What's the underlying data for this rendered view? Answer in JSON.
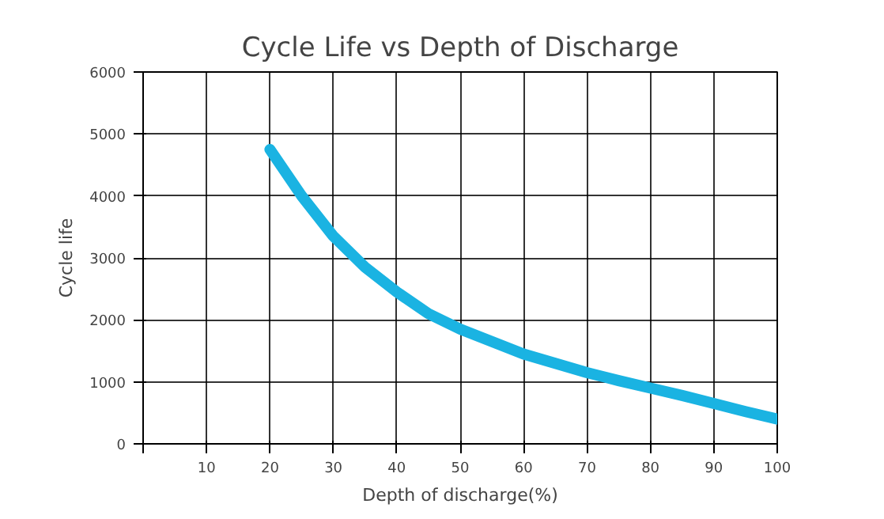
{
  "chart_data": {
    "type": "line",
    "title": "Cycle Life vs Depth of Discharge",
    "xlabel": "Depth of discharge(%)",
    "ylabel": "Cycle life",
    "x": [
      20,
      25,
      30,
      35,
      40,
      45,
      50,
      55,
      60,
      65,
      70,
      75,
      80,
      85,
      90,
      95,
      100
    ],
    "series": [
      {
        "color": "#1ab3e2",
        "values": [
          4750,
          4000,
          3350,
          2850,
          2450,
          2100,
          1850,
          1650,
          1450,
          1300,
          1150,
          1020,
          900,
          780,
          650,
          520,
          400
        ]
      }
    ],
    "xlim": [
      0,
      100
    ],
    "xticks": [
      {
        "value": 0,
        "label": null
      },
      10,
      20,
      30,
      40,
      50,
      60,
      70,
      80,
      90,
      100
    ],
    "ylim": [
      0,
      6000
    ],
    "yticks": [
      0,
      1000,
      2000,
      3000,
      4000,
      5000,
      6000
    ],
    "grid": true,
    "marker": "none",
    "line_style": "solid"
  }
}
